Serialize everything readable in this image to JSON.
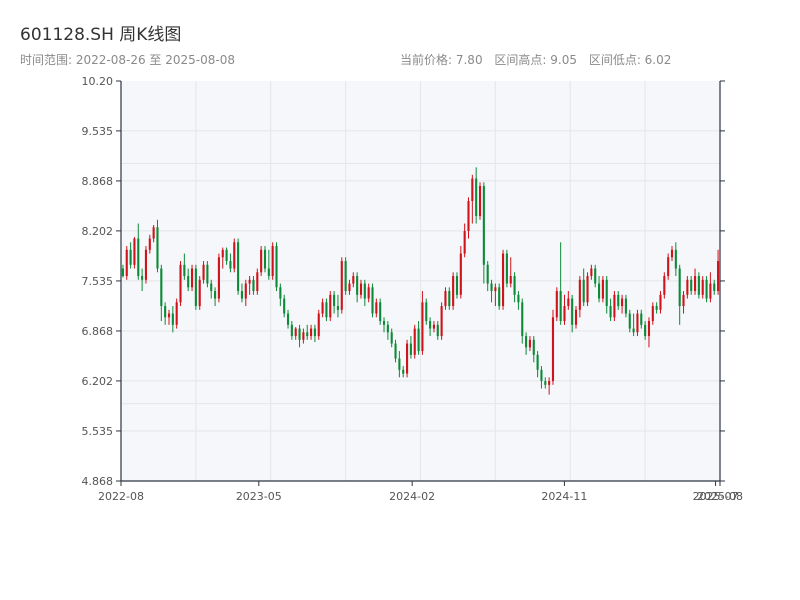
{
  "title": "601128.SH 周K线图",
  "subtitle": "时间范围: 2022-08-26 至 2025-08-08",
  "stats": {
    "current": "当前价格: 7.80",
    "high": "区间高点: 9.05",
    "low": "区间低点: 6.02"
  },
  "colors": {
    "up": "#d0121b",
    "down": "#0c8a37",
    "plot_bg": "#f5f7fa",
    "grid": "#e3e6ea",
    "axis": "#2c3440"
  },
  "chart_data": {
    "type": "candlestick",
    "title": "601128.SH 周K线图",
    "x_start": "2022-08-26",
    "x_end": "2025-08-08",
    "ylim": [
      4.868,
      10.2
    ],
    "y_ticks": [
      "10.20",
      "9.535",
      "8.868",
      "8.202",
      "7.535",
      "6.868",
      "6.202",
      "5.535",
      "4.868"
    ],
    "x_ticks": [
      "2022-08",
      "2023-05",
      "2024-02",
      "2024-11",
      "2025-07",
      "2025-08"
    ],
    "grid": true,
    "ohlc": [
      [
        7.7,
        7.6,
        7.75,
        7.58
      ],
      [
        7.6,
        7.95,
        8.0,
        7.55
      ],
      [
        7.95,
        7.75,
        8.05,
        7.7
      ],
      [
        7.75,
        8.1,
        8.12,
        7.7
      ],
      [
        8.1,
        7.6,
        8.3,
        7.55
      ],
      [
        7.6,
        7.55,
        7.7,
        7.4
      ],
      [
        7.55,
        7.95,
        8.0,
        7.5
      ],
      [
        7.95,
        8.1,
        8.15,
        7.9
      ],
      [
        8.1,
        8.25,
        8.28,
        8.05
      ],
      [
        8.25,
        7.7,
        8.35,
        7.65
      ],
      [
        7.7,
        7.2,
        7.75,
        7.0
      ],
      [
        7.2,
        7.05,
        7.25,
        6.95
      ],
      [
        7.05,
        7.1,
        7.15,
        6.95
      ],
      [
        7.1,
        6.95,
        7.2,
        6.85
      ],
      [
        6.95,
        7.25,
        7.3,
        6.9
      ],
      [
        7.25,
        7.75,
        7.8,
        7.2
      ],
      [
        7.75,
        7.6,
        7.9,
        7.55
      ],
      [
        7.6,
        7.45,
        7.7,
        7.4
      ],
      [
        7.45,
        7.7,
        7.75,
        7.4
      ],
      [
        7.7,
        7.2,
        7.75,
        7.15
      ],
      [
        7.2,
        7.55,
        7.6,
        7.15
      ],
      [
        7.55,
        7.75,
        7.8,
        7.5
      ],
      [
        7.75,
        7.5,
        7.8,
        7.45
      ],
      [
        7.5,
        7.4,
        7.55,
        7.3
      ],
      [
        7.4,
        7.3,
        7.45,
        7.2
      ],
      [
        7.3,
        7.85,
        7.9,
        7.25
      ],
      [
        7.85,
        7.95,
        7.98,
        7.7
      ],
      [
        7.95,
        7.8,
        7.98,
        7.75
      ],
      [
        7.8,
        7.7,
        7.9,
        7.65
      ],
      [
        7.7,
        8.05,
        8.1,
        7.65
      ],
      [
        8.05,
        7.4,
        8.1,
        7.35
      ],
      [
        7.4,
        7.3,
        7.5,
        7.25
      ],
      [
        7.3,
        7.5,
        7.55,
        7.2
      ],
      [
        7.5,
        7.55,
        7.6,
        7.35
      ],
      [
        7.55,
        7.4,
        7.6,
        7.35
      ],
      [
        7.4,
        7.65,
        7.7,
        7.35
      ],
      [
        7.65,
        7.95,
        8.0,
        7.6
      ],
      [
        7.95,
        7.7,
        8.0,
        7.65
      ],
      [
        7.7,
        7.6,
        7.95,
        7.55
      ],
      [
        7.6,
        8.0,
        8.05,
        7.55
      ],
      [
        8.0,
        7.45,
        8.05,
        7.4
      ],
      [
        7.45,
        7.3,
        7.5,
        7.2
      ],
      [
        7.3,
        7.1,
        7.35,
        7.05
      ],
      [
        7.1,
        6.95,
        7.15,
        6.9
      ],
      [
        6.95,
        6.8,
        7.0,
        6.75
      ],
      [
        6.8,
        6.9,
        6.92,
        6.75
      ],
      [
        6.9,
        6.75,
        6.95,
        6.65
      ],
      [
        6.75,
        6.85,
        6.9,
        6.7
      ],
      [
        6.85,
        6.8,
        6.95,
        6.75
      ],
      [
        6.8,
        6.9,
        6.95,
        6.75
      ],
      [
        6.9,
        6.8,
        6.95,
        6.72
      ],
      [
        6.8,
        7.1,
        7.15,
        6.75
      ],
      [
        7.1,
        7.25,
        7.3,
        7.05
      ],
      [
        7.25,
        7.05,
        7.3,
        7.0
      ],
      [
        7.05,
        7.35,
        7.4,
        7.0
      ],
      [
        7.35,
        7.2,
        7.4,
        7.1
      ],
      [
        7.2,
        7.15,
        7.35,
        7.05
      ],
      [
        7.15,
        7.8,
        7.85,
        7.1
      ],
      [
        7.8,
        7.4,
        7.85,
        7.35
      ],
      [
        7.4,
        7.5,
        7.55,
        7.35
      ],
      [
        7.5,
        7.6,
        7.65,
        7.45
      ],
      [
        7.6,
        7.35,
        7.65,
        7.25
      ],
      [
        7.35,
        7.5,
        7.55,
        7.3
      ],
      [
        7.5,
        7.3,
        7.55,
        7.2
      ],
      [
        7.3,
        7.45,
        7.5,
        7.25
      ],
      [
        7.45,
        7.1,
        7.5,
        7.05
      ],
      [
        7.1,
        7.25,
        7.3,
        7.05
      ],
      [
        7.25,
        7.0,
        7.3,
        6.95
      ],
      [
        7.0,
        6.95,
        7.05,
        6.85
      ],
      [
        6.95,
        6.85,
        7.0,
        6.75
      ],
      [
        6.85,
        6.7,
        6.9,
        6.65
      ],
      [
        6.7,
        6.5,
        6.75,
        6.45
      ],
      [
        6.5,
        6.35,
        6.6,
        6.25
      ],
      [
        6.35,
        6.3,
        6.4,
        6.25
      ],
      [
        6.3,
        6.7,
        6.75,
        6.25
      ],
      [
        6.7,
        6.55,
        6.8,
        6.5
      ],
      [
        6.55,
        6.9,
        6.95,
        6.5
      ],
      [
        6.9,
        6.6,
        7.0,
        6.55
      ],
      [
        6.6,
        7.25,
        7.4,
        6.55
      ],
      [
        7.25,
        7.0,
        7.3,
        6.95
      ],
      [
        7.0,
        6.9,
        7.05,
        6.8
      ],
      [
        6.9,
        6.95,
        7.0,
        6.85
      ],
      [
        6.95,
        6.8,
        7.0,
        6.75
      ],
      [
        6.8,
        7.2,
        7.25,
        6.75
      ],
      [
        7.2,
        7.4,
        7.45,
        7.15
      ],
      [
        7.4,
        7.2,
        7.45,
        7.15
      ],
      [
        7.2,
        7.6,
        7.65,
        7.15
      ],
      [
        7.6,
        7.35,
        7.65,
        7.3
      ],
      [
        7.35,
        7.9,
        8.0,
        7.3
      ],
      [
        7.9,
        8.2,
        8.3,
        7.85
      ],
      [
        8.2,
        8.6,
        8.65,
        8.1
      ],
      [
        8.6,
        8.9,
        8.95,
        8.3
      ],
      [
        8.9,
        8.4,
        9.05,
        8.3
      ],
      [
        8.4,
        8.8,
        8.85,
        8.35
      ],
      [
        8.8,
        7.75,
        8.85,
        7.5
      ],
      [
        7.75,
        7.5,
        7.8,
        7.4
      ],
      [
        7.5,
        7.4,
        7.55,
        7.25
      ],
      [
        7.4,
        7.45,
        7.5,
        7.2
      ],
      [
        7.45,
        7.2,
        7.5,
        7.15
      ],
      [
        7.2,
        7.9,
        7.95,
        7.15
      ],
      [
        7.9,
        7.5,
        7.95,
        7.45
      ],
      [
        7.5,
        7.6,
        7.85,
        7.45
      ],
      [
        7.6,
        7.35,
        7.65,
        7.25
      ],
      [
        7.35,
        7.25,
        7.4,
        7.15
      ],
      [
        7.25,
        6.8,
        7.3,
        6.7
      ],
      [
        6.8,
        6.65,
        6.85,
        6.55
      ],
      [
        6.65,
        6.75,
        6.8,
        6.6
      ],
      [
        6.75,
        6.55,
        6.8,
        6.45
      ],
      [
        6.55,
        6.35,
        6.6,
        6.25
      ],
      [
        6.35,
        6.2,
        6.4,
        6.1
      ],
      [
        6.2,
        6.15,
        6.25,
        6.1
      ],
      [
        6.15,
        6.2,
        6.25,
        6.02
      ],
      [
        6.2,
        7.05,
        7.15,
        6.15
      ],
      [
        7.05,
        7.4,
        7.45,
        7.0
      ],
      [
        7.4,
        7.0,
        8.05,
        6.95
      ],
      [
        7.0,
        7.2,
        7.35,
        6.95
      ],
      [
        7.2,
        7.3,
        7.4,
        7.15
      ],
      [
        7.3,
        6.95,
        7.35,
        6.85
      ],
      [
        6.95,
        7.15,
        7.2,
        6.9
      ],
      [
        7.15,
        7.55,
        7.6,
        7.05
      ],
      [
        7.55,
        7.25,
        7.7,
        7.2
      ],
      [
        7.25,
        7.6,
        7.65,
        7.2
      ],
      [
        7.6,
        7.7,
        7.75,
        7.55
      ],
      [
        7.7,
        7.5,
        7.75,
        7.45
      ],
      [
        7.5,
        7.3,
        7.6,
        7.25
      ],
      [
        7.3,
        7.55,
        7.6,
        7.25
      ],
      [
        7.55,
        7.2,
        7.6,
        7.1
      ],
      [
        7.2,
        7.05,
        7.3,
        7.0
      ],
      [
        7.05,
        7.35,
        7.4,
        7.0
      ],
      [
        7.35,
        7.2,
        7.4,
        7.15
      ],
      [
        7.2,
        7.3,
        7.35,
        7.1
      ],
      [
        7.3,
        7.1,
        7.35,
        7.05
      ],
      [
        7.1,
        6.9,
        7.15,
        6.85
      ],
      [
        6.9,
        6.85,
        7.1,
        6.8
      ],
      [
        6.85,
        7.1,
        7.15,
        6.8
      ],
      [
        7.1,
        6.95,
        7.15,
        6.9
      ],
      [
        6.95,
        6.8,
        7.0,
        6.75
      ],
      [
        6.8,
        7.0,
        7.05,
        6.65
      ],
      [
        7.0,
        7.2,
        7.25,
        6.95
      ],
      [
        7.2,
        7.15,
        7.25,
        7.1
      ],
      [
        7.15,
        7.35,
        7.4,
        7.1
      ],
      [
        7.35,
        7.6,
        7.65,
        7.3
      ],
      [
        7.6,
        7.85,
        7.9,
        7.55
      ],
      [
        7.85,
        7.95,
        8.0,
        7.8
      ],
      [
        7.95,
        7.7,
        8.05,
        7.6
      ],
      [
        7.7,
        7.2,
        7.75,
        6.95
      ],
      [
        7.2,
        7.35,
        7.4,
        7.1
      ],
      [
        7.35,
        7.55,
        7.6,
        7.3
      ],
      [
        7.55,
        7.4,
        7.6,
        7.35
      ],
      [
        7.4,
        7.6,
        7.7,
        7.35
      ],
      [
        7.6,
        7.35,
        7.65,
        7.3
      ],
      [
        7.35,
        7.55,
        7.6,
        7.3
      ],
      [
        7.55,
        7.3,
        7.6,
        7.25
      ],
      [
        7.3,
        7.5,
        7.65,
        7.25
      ],
      [
        7.5,
        7.4,
        7.55,
        7.35
      ],
      [
        7.4,
        7.8,
        7.95,
        7.35
      ]
    ]
  }
}
